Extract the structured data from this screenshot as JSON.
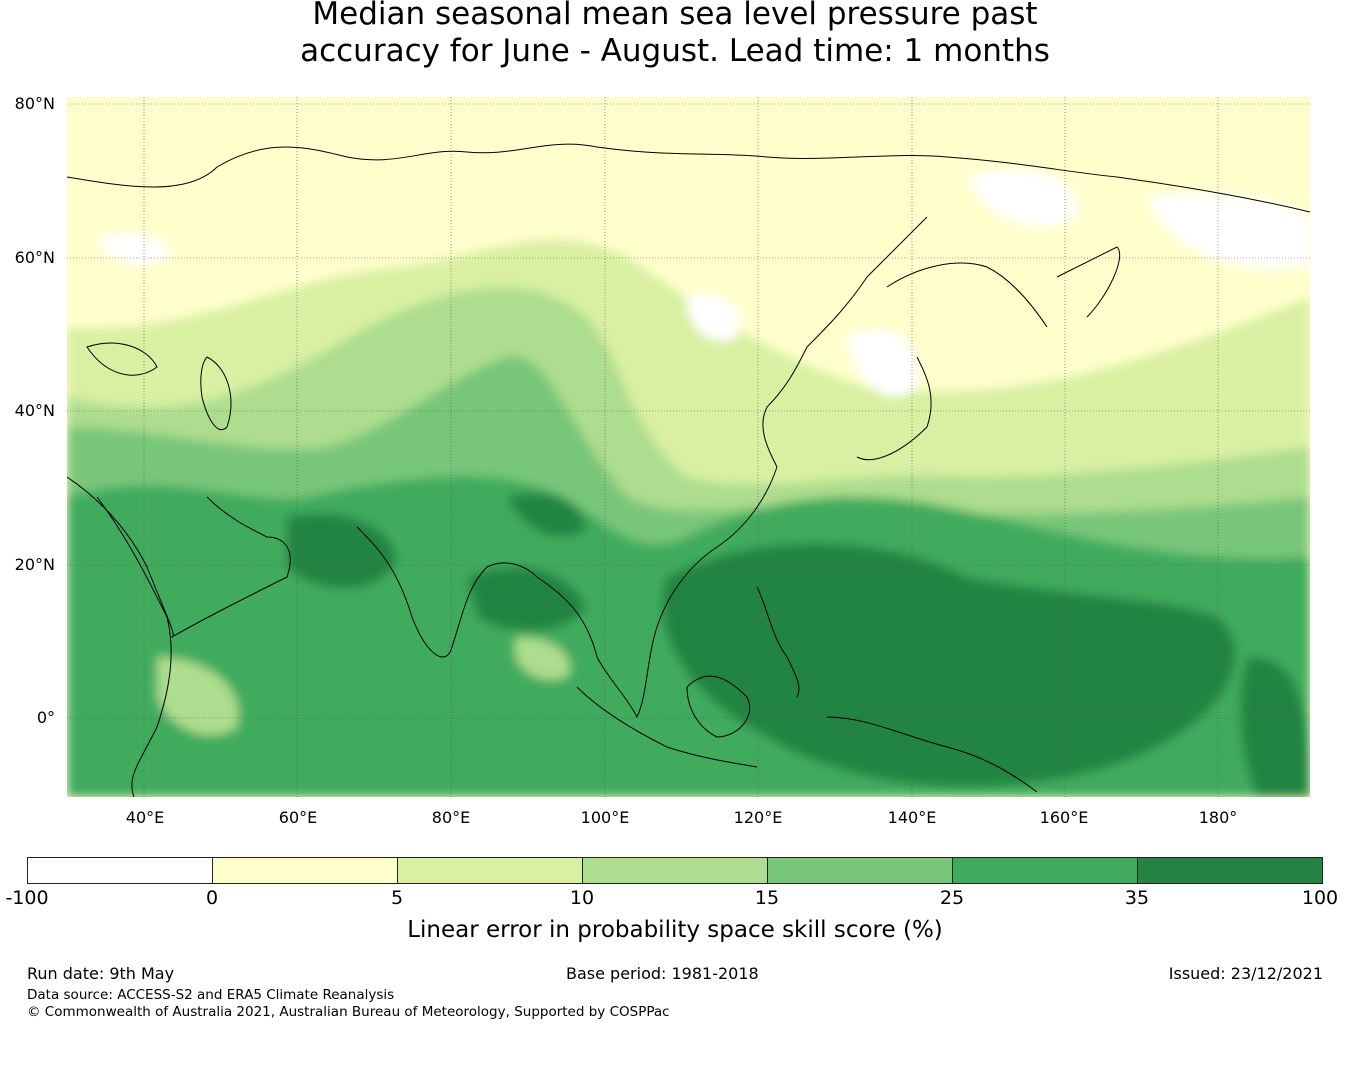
{
  "title": {
    "line1": "Median seasonal mean sea level pressure past",
    "line2": "accuracy for June - August. Lead time: 1 months"
  },
  "map": {
    "lat_labels": [
      "80°N",
      "60°N",
      "40°N",
      "20°N",
      "0°"
    ],
    "lon_labels": [
      "40°E",
      "60°E",
      "80°E",
      "100°E",
      "120°E",
      "140°E",
      "160°E",
      "180°"
    ],
    "extent": {
      "lon": [
        30,
        192
      ],
      "lat": [
        -10,
        81
      ]
    },
    "land_outline": "black coastlines",
    "gridlines": true
  },
  "colorbar": {
    "label": "Linear error in probability space skill score (%)",
    "ticks": [
      "-100",
      "0",
      "5",
      "10",
      "15",
      "25",
      "35",
      "100"
    ],
    "colors": [
      "#ffffff",
      "#ffffcc",
      "#d9f0a3",
      "#addd8e",
      "#78c679",
      "#41ab5d",
      "#238443"
    ]
  },
  "footer": {
    "run_date": "Run date: 9th May",
    "base_period": "Base period: 1981-2018",
    "issued": "Issued: 23/12/2021",
    "data_source": "Data source: ACCESS-S2 and ERA5 Climate Reanalysis",
    "copyright": "© Commonwealth of Australia 2021, Australian Bureau of Meteorology, Supported by COSPPac"
  }
}
